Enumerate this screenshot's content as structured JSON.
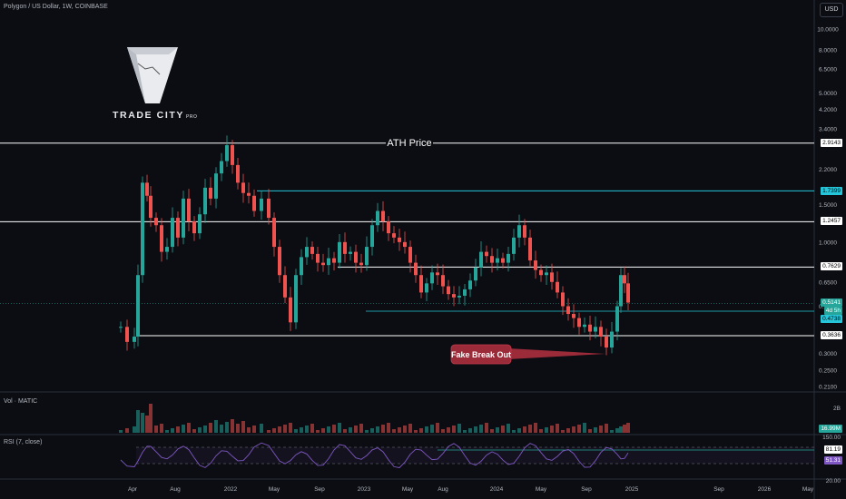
{
  "header": {
    "symbol_line": "Polygon / US Dollar, 1W, COINBASE",
    "currency_button": "USD"
  },
  "logo": {
    "name": "TRADE CITY",
    "suffix": "PRO"
  },
  "volume_pane": {
    "label": "Vol · MATIC",
    "axis_label": "2B",
    "value_tag": "16.99M"
  },
  "rsi_pane": {
    "label": "RSI (7, close)",
    "axis_top": "150.00",
    "axis_bottom": "20.00",
    "upper_tag": "81.19",
    "value_tag": "51.31"
  },
  "annotations": {
    "ath_label": "ATH Price",
    "fake_breakout_label": "Fake Break Out"
  },
  "colors": {
    "background": "#0b0d12",
    "up": "#26a69a",
    "down": "#ef5350",
    "level_white": "#ffffff",
    "level_teal": "#26c6da",
    "rsi_line": "#7e57c2",
    "callout": "#9c2b3a"
  },
  "chart_data": {
    "type": "candlestick",
    "y_scale": "log",
    "y_ticks": [
      "10.0000",
      "8.0000",
      "6.5000",
      "5.0000",
      "4.2000",
      "3.4000",
      "2.2000",
      "1.5000",
      "1.0000",
      "0.6500",
      "0.5000",
      "0.3000",
      "0.2500",
      "0.2100"
    ],
    "x_ticks": [
      "Apr",
      "Aug",
      "2022",
      "May",
      "Sep",
      "2023",
      "May",
      "Aug",
      "2024",
      "May",
      "Sep",
      "2025",
      "Sep",
      "2026",
      "May"
    ],
    "levels": [
      {
        "price_label": "2.9143",
        "style": "white"
      },
      {
        "price_label": "1.7399",
        "style": "teal"
      },
      {
        "price_label": "1.2457",
        "style": "white"
      },
      {
        "price_label": "0.7629",
        "style": "white"
      },
      {
        "price_label": "0.3636",
        "style": "white"
      }
    ],
    "current_price_labels": [
      "0.5141",
      "4d 5h",
      "0.4738"
    ]
  }
}
